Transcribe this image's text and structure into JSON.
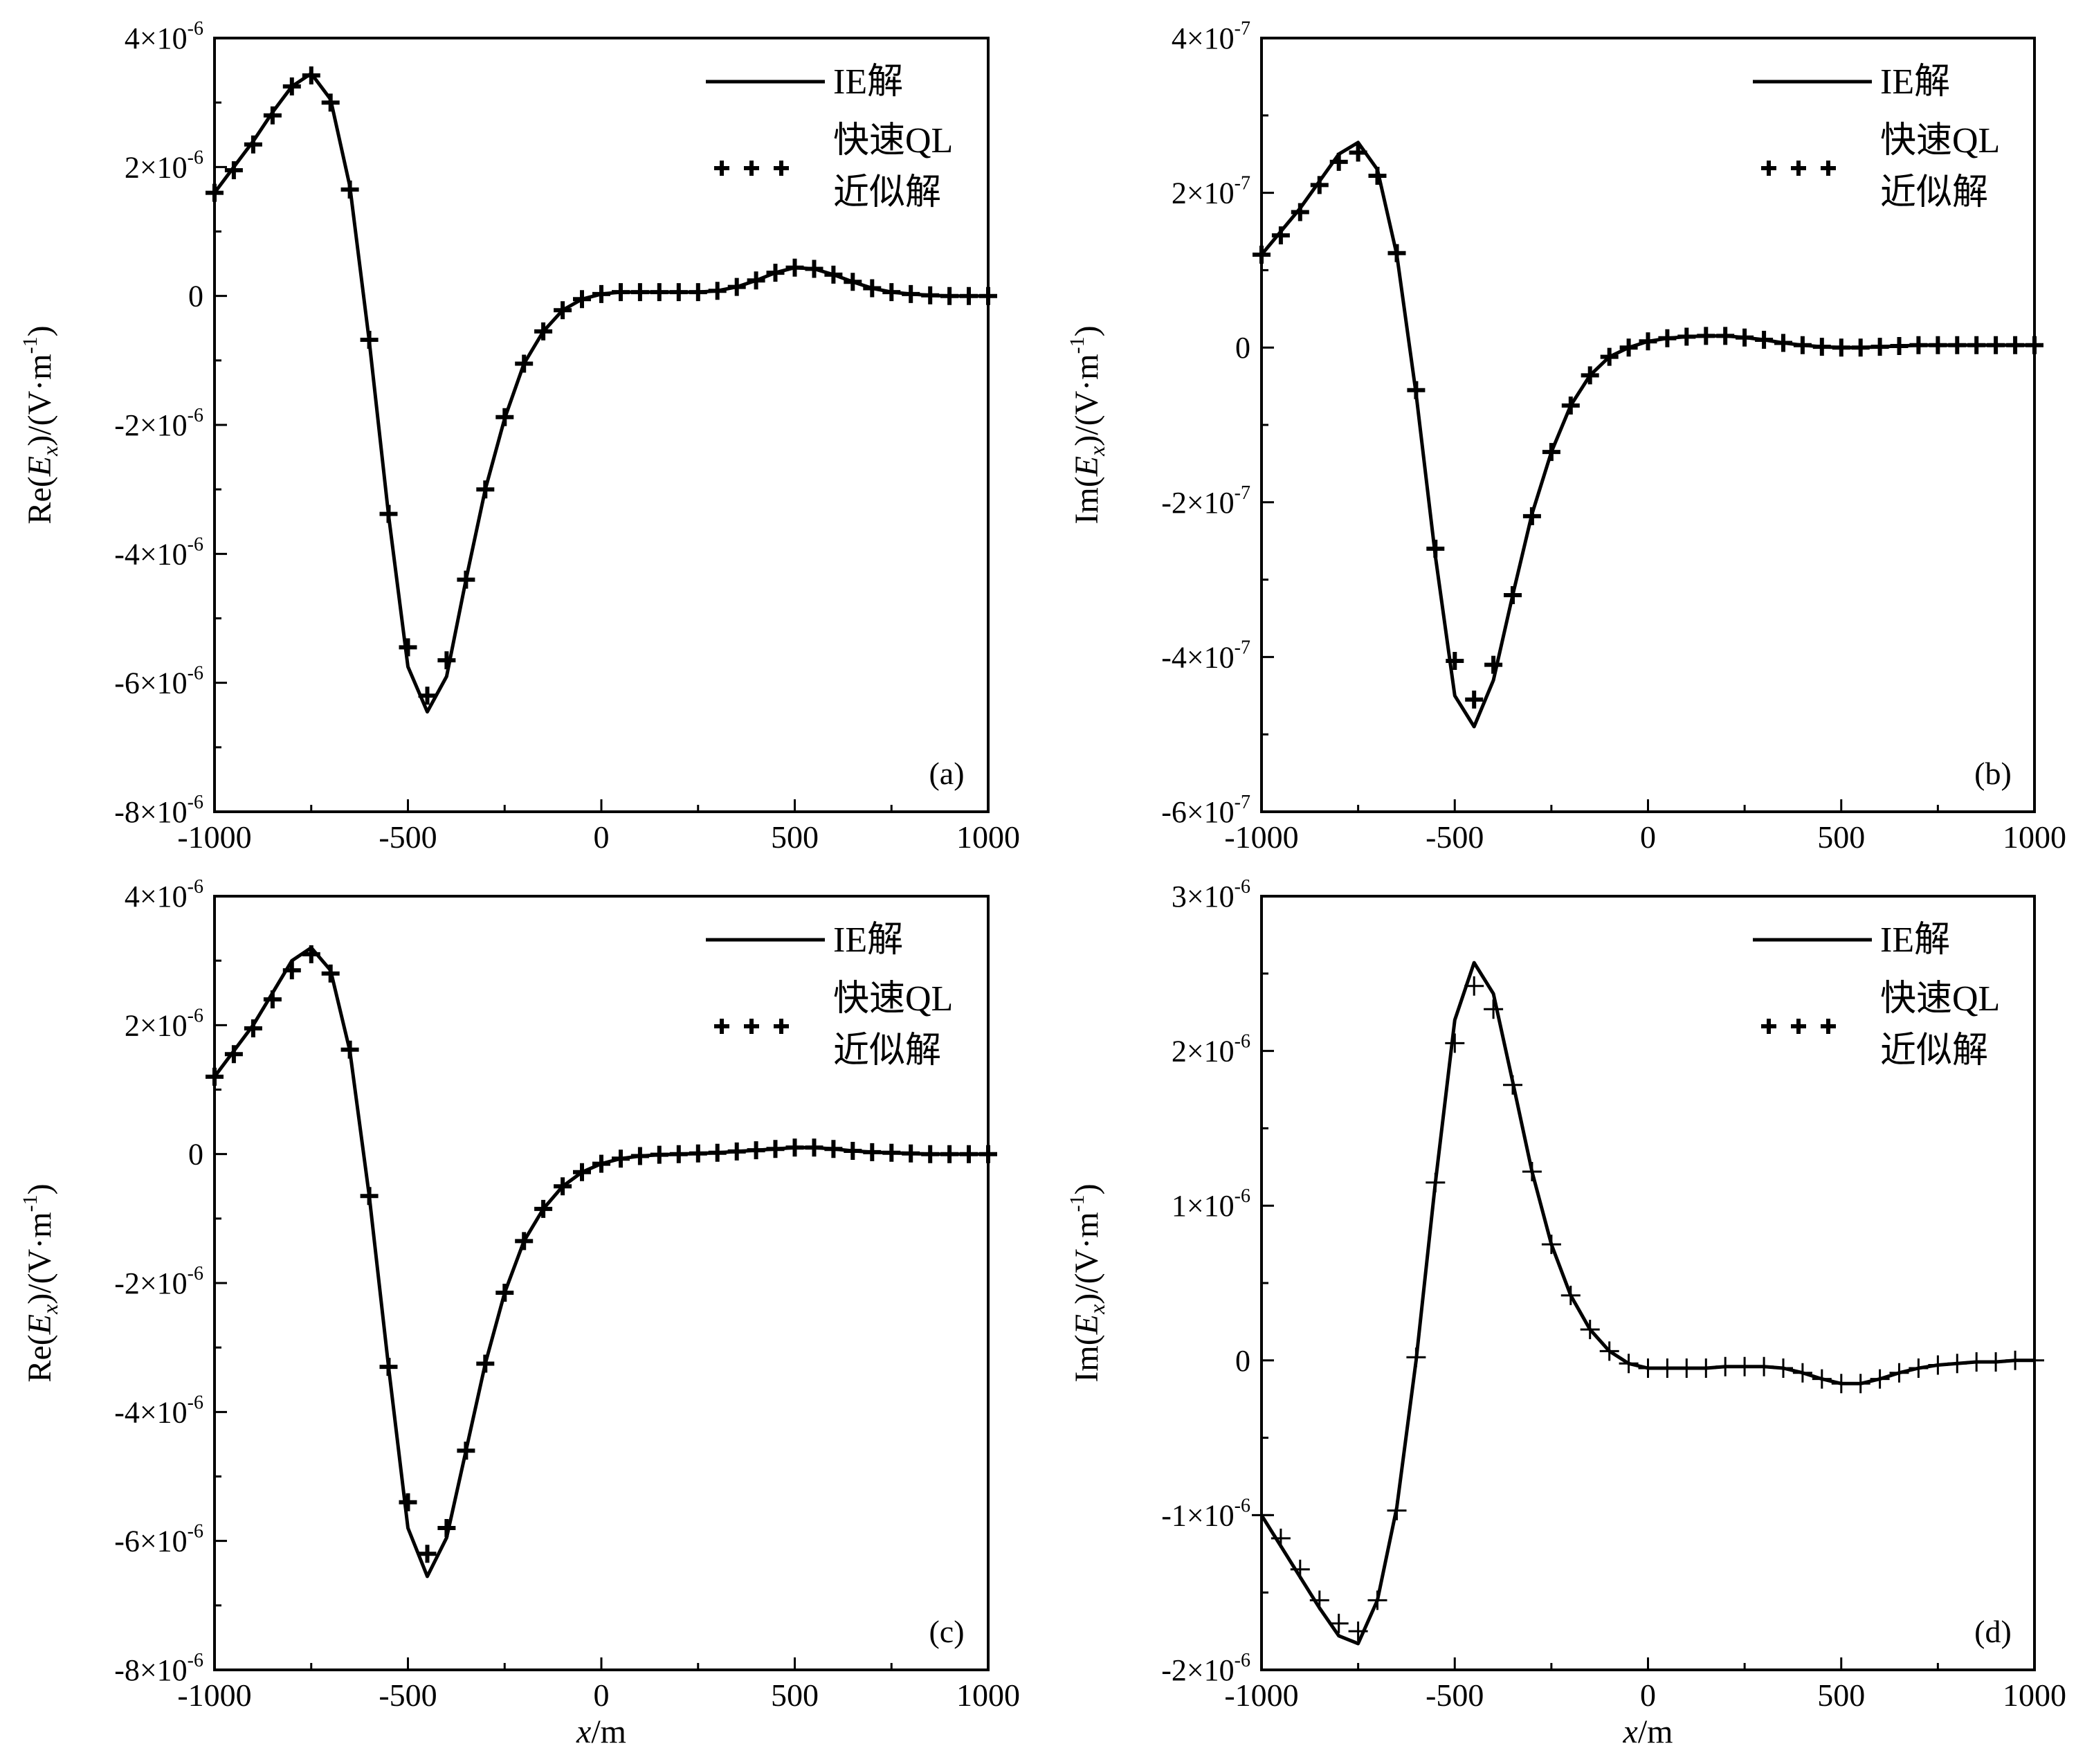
{
  "chart_data": [
    {
      "panel": "(a)",
      "type": "line",
      "ylabel_prefix": "Re(",
      "ylabel_var": "E",
      "ylabel_sub": "x",
      "ylabel_suffix": ")/(V·m",
      "ylabel_exp": "-1",
      "ylabel_close": ")",
      "xlabel_var": "",
      "xlabel_unit": "",
      "xlim": [
        -1000,
        1000
      ],
      "ylim": [
        -8e-06,
        4e-06
      ],
      "xticks": [
        {
          "value": -1000,
          "label": "-1000"
        },
        {
          "value": -500,
          "label": "-500"
        },
        {
          "value": 0,
          "label": "0"
        },
        {
          "value": 500,
          "label": "500"
        },
        {
          "value": 1000,
          "label": "1000"
        }
      ],
      "yticks": [
        {
          "value": 4e-06,
          "mant": "4×10",
          "exp": "-6"
        },
        {
          "value": 2e-06,
          "mant": "2×10",
          "exp": "-6"
        },
        {
          "value": 0,
          "mant": "0",
          "exp": ""
        },
        {
          "value": -2e-06,
          "mant": "-2×10",
          "exp": "-6"
        },
        {
          "value": -4e-06,
          "mant": "-4×10",
          "exp": "-6"
        },
        {
          "value": -6e-06,
          "mant": "-6×10",
          "exp": "-6"
        },
        {
          "value": -8e-06,
          "mant": "-8×10",
          "exp": "-6"
        }
      ],
      "legend": {
        "line": "IE解",
        "marker_line1": "快速QL",
        "marker_line2": "近似解",
        "position": "top-right"
      },
      "series": [
        {
          "name": "IE解",
          "style": "line",
          "x": [
            -1000,
            -950,
            -900,
            -850,
            -800,
            -750,
            -700,
            -650,
            -600,
            -550,
            -500,
            -450,
            -400,
            -350,
            -300,
            -250,
            -200,
            -150,
            -100,
            -50,
            0,
            50,
            100,
            150,
            200,
            250,
            300,
            350,
            400,
            450,
            500,
            550,
            600,
            650,
            700,
            750,
            800,
            850,
            900,
            950,
            1000
          ],
          "y": [
            1.6e-06,
            2e-06,
            2.4e-06,
            2.85e-06,
            3.25e-06,
            3.45e-06,
            3.05e-06,
            1.7e-06,
            -7e-07,
            -3.4e-06,
            -5.75e-06,
            -6.45e-06,
            -5.9e-06,
            -4.4e-06,
            -3e-06,
            -1.9e-06,
            -1.05e-06,
            -5.5e-07,
            -2.2e-07,
            -5e-08,
            3e-08,
            6e-08,
            6e-08,
            6e-08,
            6e-08,
            6e-08,
            8e-08,
            1.4e-07,
            2.4e-07,
            3.6e-07,
            4.4e-07,
            4.2e-07,
            3.3e-07,
            2.2e-07,
            1.2e-07,
            6e-08,
            3e-08,
            1e-08,
            0.0,
            0.0,
            0.0
          ]
        },
        {
          "name": "快速QL近似解",
          "style": "markers",
          "x": [
            -1000,
            -950,
            -900,
            -850,
            -800,
            -750,
            -700,
            -650,
            -600,
            -550,
            -500,
            -450,
            -400,
            -350,
            -300,
            -250,
            -200,
            -150,
            -100,
            -50,
            0,
            50,
            100,
            150,
            200,
            250,
            300,
            350,
            400,
            450,
            500,
            550,
            600,
            650,
            700,
            750,
            800,
            850,
            900,
            950,
            1000
          ],
          "y": [
            1.6e-06,
            1.95e-06,
            2.35e-06,
            2.8e-06,
            3.25e-06,
            3.42e-06,
            3e-06,
            1.65e-06,
            -6.8e-07,
            -3.38e-06,
            -5.45e-06,
            -6.2e-06,
            -5.65e-06,
            -4.4e-06,
            -3e-06,
            -1.88e-06,
            -1.05e-06,
            -5.5e-07,
            -2.2e-07,
            -5e-08,
            3e-08,
            6e-08,
            6e-08,
            6e-08,
            6e-08,
            6e-08,
            8e-08,
            1.4e-07,
            2.4e-07,
            3.6e-07,
            4.4e-07,
            4.2e-07,
            3.3e-07,
            2.2e-07,
            1.2e-07,
            6e-08,
            3e-08,
            1e-08,
            0.0,
            0.0,
            0.0
          ]
        }
      ]
    },
    {
      "panel": "(b)",
      "type": "line",
      "ylabel_prefix": "Im(",
      "ylabel_var": "E",
      "ylabel_sub": "x",
      "ylabel_suffix": ")/(V·m",
      "ylabel_exp": "-1",
      "ylabel_close": ")",
      "xlabel_var": "",
      "xlabel_unit": "",
      "xlim": [
        -1000,
        1000
      ],
      "ylim": [
        -6e-07,
        4e-07
      ],
      "xticks": [
        {
          "value": -1000,
          "label": "-1000"
        },
        {
          "value": -500,
          "label": "-500"
        },
        {
          "value": 0,
          "label": "0"
        },
        {
          "value": 500,
          "label": "500"
        },
        {
          "value": 1000,
          "label": "1000"
        }
      ],
      "yticks": [
        {
          "value": 4e-07,
          "mant": "4×10",
          "exp": "-7"
        },
        {
          "value": 2e-07,
          "mant": "2×10",
          "exp": "-7"
        },
        {
          "value": 0,
          "mant": "0",
          "exp": ""
        },
        {
          "value": -2e-07,
          "mant": "-2×10",
          "exp": "-7"
        },
        {
          "value": -4e-07,
          "mant": "-4×10",
          "exp": "-7"
        },
        {
          "value": -6e-07,
          "mant": "-6×10",
          "exp": "-7"
        }
      ],
      "legend": {
        "line": "IE解",
        "marker_line1": "快速QL",
        "marker_line2": "近似解",
        "position": "top-right"
      },
      "series": [
        {
          "name": "IE解",
          "style": "line",
          "x": [
            -1000,
            -950,
            -900,
            -850,
            -800,
            -750,
            -700,
            -650,
            -600,
            -550,
            -500,
            -450,
            -400,
            -350,
            -300,
            -250,
            -200,
            -150,
            -100,
            -50,
            0,
            50,
            100,
            150,
            200,
            250,
            300,
            350,
            400,
            450,
            500,
            550,
            600,
            650,
            700,
            750,
            800,
            850,
            900,
            950,
            1000
          ],
          "y": [
            1.2e-07,
            1.5e-07,
            1.8e-07,
            2.15e-07,
            2.5e-07,
            2.65e-07,
            2.3e-07,
            1.2e-07,
            -6e-08,
            -2.7e-07,
            -4.5e-07,
            -4.9e-07,
            -4.3e-07,
            -3.2e-07,
            -2.15e-07,
            -1.35e-07,
            -7.5e-08,
            -3.6e-08,
            -1.2e-08,
            0.0,
            8e-09,
            1.2e-08,
            1.4e-08,
            1.5e-08,
            1.5e-08,
            1.3e-08,
            1e-08,
            6e-09,
            3e-09,
            1e-09,
            0.0,
            0.0,
            1e-09,
            2e-09,
            3e-09,
            3e-09,
            3e-09,
            3e-09,
            3e-09,
            3e-09,
            3e-09
          ]
        },
        {
          "name": "快速QL近似解",
          "style": "markers",
          "x": [
            -1000,
            -950,
            -900,
            -850,
            -800,
            -750,
            -700,
            -650,
            -600,
            -550,
            -500,
            -450,
            -400,
            -350,
            -300,
            -250,
            -200,
            -150,
            -100,
            -50,
            0,
            50,
            100,
            150,
            200,
            250,
            300,
            350,
            400,
            450,
            500,
            550,
            600,
            650,
            700,
            750,
            800,
            850,
            900,
            950,
            1000
          ],
          "y": [
            1.2e-07,
            1.45e-07,
            1.75e-07,
            2.1e-07,
            2.4e-07,
            2.52e-07,
            2.22e-07,
            1.22e-07,
            -5.5e-08,
            -2.6e-07,
            -4.05e-07,
            -4.55e-07,
            -4.1e-07,
            -3.2e-07,
            -2.18e-07,
            -1.35e-07,
            -7.5e-08,
            -3.6e-08,
            -1.2e-08,
            0.0,
            8e-09,
            1.2e-08,
            1.4e-08,
            1.5e-08,
            1.5e-08,
            1.3e-08,
            1e-08,
            6e-09,
            3e-09,
            1e-09,
            0.0,
            0.0,
            1e-09,
            2e-09,
            3e-09,
            3e-09,
            3e-09,
            3e-09,
            3e-09,
            3e-09,
            3e-09
          ]
        }
      ]
    },
    {
      "panel": "(c)",
      "type": "line",
      "ylabel_prefix": "Re(",
      "ylabel_var": "E",
      "ylabel_sub": "x",
      "ylabel_suffix": ")/(V·m",
      "ylabel_exp": "-1",
      "ylabel_close": ")",
      "xlabel_var": "x",
      "xlabel_unit": "/m",
      "xlim": [
        -1000,
        1000
      ],
      "ylim": [
        -8e-06,
        4e-06
      ],
      "xticks": [
        {
          "value": -1000,
          "label": "-1000"
        },
        {
          "value": -500,
          "label": "-500"
        },
        {
          "value": 0,
          "label": "0"
        },
        {
          "value": 500,
          "label": "500"
        },
        {
          "value": 1000,
          "label": "1000"
        }
      ],
      "yticks": [
        {
          "value": 4e-06,
          "mant": "4×10",
          "exp": "-6"
        },
        {
          "value": 2e-06,
          "mant": "2×10",
          "exp": "-6"
        },
        {
          "value": 0,
          "mant": "0",
          "exp": ""
        },
        {
          "value": -2e-06,
          "mant": "-2×10",
          "exp": "-6"
        },
        {
          "value": -4e-06,
          "mant": "-4×10",
          "exp": "-6"
        },
        {
          "value": -6e-06,
          "mant": "-6×10",
          "exp": "-6"
        },
        {
          "value": -8e-06,
          "mant": "-8×10",
          "exp": "-6"
        }
      ],
      "legend": {
        "line": "IE解",
        "marker_line1": "快速QL",
        "marker_line2": "近似解",
        "position": "top-right"
      },
      "series": [
        {
          "name": "IE解",
          "style": "line",
          "x": [
            -1000,
            -950,
            -900,
            -850,
            -800,
            -750,
            -700,
            -650,
            -600,
            -550,
            -500,
            -450,
            -400,
            -350,
            -300,
            -250,
            -200,
            -150,
            -100,
            -50,
            0,
            50,
            100,
            150,
            200,
            250,
            300,
            350,
            400,
            450,
            500,
            550,
            600,
            650,
            700,
            750,
            800,
            850,
            900,
            950,
            1000
          ],
          "y": [
            1.2e-06,
            1.6e-06,
            2e-06,
            2.5e-06,
            3e-06,
            3.2e-06,
            2.85e-06,
            1.6e-06,
            -6.5e-07,
            -3.3e-06,
            -5.8e-06,
            -6.55e-06,
            -5.95e-06,
            -4.6e-06,
            -3.25e-06,
            -2.15e-06,
            -1.35e-06,
            -8.5e-07,
            -5e-07,
            -2.8e-07,
            -1.5e-07,
            -7e-08,
            -3e-08,
            -1e-08,
            0.0,
            1e-08,
            2e-08,
            4e-08,
            6e-08,
            8e-08,
            1e-07,
            1e-07,
            8e-08,
            5e-08,
            3e-08,
            2e-08,
            1e-08,
            0.0,
            0.0,
            0.0,
            0.0
          ]
        },
        {
          "name": "快速QL近似解",
          "style": "markers",
          "x": [
            -1000,
            -950,
            -900,
            -850,
            -800,
            -750,
            -700,
            -650,
            -600,
            -550,
            -500,
            -450,
            -400,
            -350,
            -300,
            -250,
            -200,
            -150,
            -100,
            -50,
            0,
            50,
            100,
            150,
            200,
            250,
            300,
            350,
            400,
            450,
            500,
            550,
            600,
            650,
            700,
            750,
            800,
            850,
            900,
            950,
            1000
          ],
          "y": [
            1.2e-06,
            1.55e-06,
            1.95e-06,
            2.4e-06,
            2.85e-06,
            3.1e-06,
            2.8e-06,
            1.62e-06,
            -6.5e-07,
            -3.3e-06,
            -5.4e-06,
            -6.2e-06,
            -5.8e-06,
            -4.6e-06,
            -3.25e-06,
            -2.15e-06,
            -1.35e-06,
            -8.5e-07,
            -5e-07,
            -2.8e-07,
            -1.5e-07,
            -7e-08,
            -3e-08,
            -1e-08,
            0.0,
            1e-08,
            2e-08,
            4e-08,
            6e-08,
            8e-08,
            1e-07,
            1e-07,
            8e-08,
            5e-08,
            3e-08,
            2e-08,
            1e-08,
            0.0,
            0.0,
            0.0,
            0.0
          ]
        }
      ]
    },
    {
      "panel": "(d)",
      "type": "line",
      "ylabel_prefix": "Im(",
      "ylabel_var": "E",
      "ylabel_sub": "x",
      "ylabel_suffix": ")/(V·m",
      "ylabel_exp": "-1",
      "ylabel_close": ")",
      "xlabel_var": "x",
      "xlabel_unit": "/m",
      "xlim": [
        -1000,
        1000
      ],
      "ylim": [
        -2e-06,
        3e-06
      ],
      "xticks": [
        {
          "value": -1000,
          "label": "-1000"
        },
        {
          "value": -500,
          "label": "-500"
        },
        {
          "value": 0,
          "label": "0"
        },
        {
          "value": 500,
          "label": "500"
        },
        {
          "value": 1000,
          "label": "1000"
        }
      ],
      "yticks": [
        {
          "value": 3e-06,
          "mant": "3×10",
          "exp": "-6"
        },
        {
          "value": 2e-06,
          "mant": "2×10",
          "exp": "-6"
        },
        {
          "value": 1e-06,
          "mant": "1×10",
          "exp": "-6"
        },
        {
          "value": 0,
          "mant": "0",
          "exp": ""
        },
        {
          "value": -1e-06,
          "mant": "-1×10",
          "exp": "-6"
        },
        {
          "value": -2e-06,
          "mant": "-2×10",
          "exp": "-6"
        }
      ],
      "legend": {
        "line": "IE解",
        "marker_line1": "快速QL",
        "marker_line2": "近似解",
        "position": "top-right"
      },
      "series": [
        {
          "name": "IE解",
          "style": "line",
          "x": [
            -1000,
            -950,
            -900,
            -850,
            -800,
            -750,
            -700,
            -650,
            -600,
            -550,
            -500,
            -450,
            -400,
            -350,
            -300,
            -250,
            -200,
            -150,
            -100,
            -50,
            0,
            50,
            100,
            150,
            200,
            250,
            300,
            350,
            400,
            450,
            500,
            550,
            600,
            650,
            700,
            750,
            800,
            850,
            900,
            950,
            1000
          ],
          "y": [
            -1e-06,
            -1.2e-06,
            -1.4e-06,
            -1.6e-06,
            -1.78e-06,
            -1.83e-06,
            -1.55e-06,
            -9.5e-07,
            0.0,
            1.15e-06,
            2.2e-06,
            2.57e-06,
            2.37e-06,
            1.8e-06,
            1.22e-06,
            7.5e-07,
            4.2e-07,
            2e-07,
            6e-08,
            -2e-08,
            -5e-08,
            -5e-08,
            -5e-08,
            -5e-08,
            -4e-08,
            -4e-08,
            -4e-08,
            -5e-08,
            -8e-08,
            -1.2e-07,
            -1.5e-07,
            -1.5e-07,
            -1.2e-07,
            -8e-08,
            -5e-08,
            -3e-08,
            -2e-08,
            -1e-08,
            -1e-08,
            0.0,
            0.0
          ]
        },
        {
          "name": "快速QL近似解",
          "style": "markers",
          "x": [
            -1000,
            -950,
            -900,
            -850,
            -800,
            -750,
            -700,
            -650,
            -600,
            -550,
            -500,
            -450,
            -400,
            -350,
            -300,
            -250,
            -200,
            -150,
            -100,
            -50,
            0,
            50,
            100,
            150,
            200,
            250,
            300,
            350,
            400,
            450,
            500,
            550,
            600,
            650,
            700,
            750,
            800,
            850,
            900,
            950,
            1000
          ],
          "y": [
            -1e-06,
            -1.15e-06,
            -1.35e-06,
            -1.55e-06,
            -1.7e-06,
            -1.75e-06,
            -1.55e-06,
            -9.7e-07,
            2e-08,
            1.15e-06,
            2.05e-06,
            2.42e-06,
            2.27e-06,
            1.78e-06,
            1.22e-06,
            7.5e-07,
            4.2e-07,
            2e-07,
            6e-08,
            -2e-08,
            -5e-08,
            -5e-08,
            -5e-08,
            -5e-08,
            -4e-08,
            -4e-08,
            -4e-08,
            -5e-08,
            -8e-08,
            -1.2e-07,
            -1.5e-07,
            -1.5e-07,
            -1.2e-07,
            -8e-08,
            -5e-08,
            -3e-08,
            -2e-08,
            -1e-08,
            -1e-08,
            0.0,
            0.0
          ]
        }
      ]
    }
  ]
}
